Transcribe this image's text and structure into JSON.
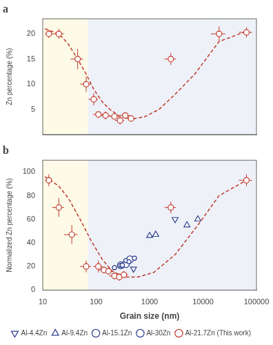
{
  "chart_data": [
    {
      "type": "scatter",
      "title": "a",
      "ylabel": "Zn percentage (%)",
      "log": "x",
      "xlim": [
        10,
        100000
      ],
      "xticks": [
        10,
        100,
        1000,
        10000,
        100000
      ],
      "ylim": [
        0,
        23
      ],
      "yticks": [
        5,
        10,
        15,
        20
      ],
      "tick_labels": "y",
      "grid": false,
      "regions": [
        {
          "from": 10,
          "to": 70,
          "color": "#fdfbe8"
        },
        {
          "from": 70,
          "to": 100000,
          "color": "#eef1f8"
        }
      ],
      "series": [
        {
          "color": "#c0392b",
          "marker": "circle",
          "x": [
            13,
            20,
            45,
            65,
            90,
            110,
            150,
            220,
            280,
            350,
            450,
            2500,
            20000,
            65000
          ],
          "values": [
            20,
            20,
            15,
            10,
            7,
            4,
            3.8,
            3.6,
            2.8,
            3.8,
            3.2,
            15,
            20,
            20.3
          ],
          "xerr_lo": [
            2,
            5,
            12,
            15,
            18,
            22,
            35,
            45,
            55,
            70,
            90,
            600,
            6000,
            18000
          ],
          "xerr_hi": [
            2,
            5,
            12,
            15,
            18,
            22,
            35,
            45,
            55,
            70,
            90,
            600,
            6000,
            18000
          ],
          "yerr_lo": [
            0.8,
            1.0,
            2.0,
            1.5,
            1.2,
            0.6,
            0.8,
            0.6,
            0.8,
            0.6,
            0.5,
            1.2,
            1.5,
            1.0
          ],
          "yerr_hi": [
            0.8,
            1.0,
            2.0,
            1.5,
            1.2,
            0.6,
            0.8,
            0.6,
            0.8,
            0.6,
            0.5,
            1.2,
            1.5,
            1.0
          ]
        },
        {
          "type": "line",
          "line_style": "dashed",
          "color": "#c0392b",
          "x": [
            11,
            15,
            20,
            30,
            45,
            65,
            90,
            130,
            180,
            280,
            450,
            800,
            1500,
            3000,
            7000,
            20000,
            65000
          ],
          "values": [
            21,
            20.5,
            20,
            18,
            15,
            12,
            9,
            6.5,
            5.0,
            3.6,
            3.1,
            3.5,
            5.0,
            8.0,
            12.0,
            18.5,
            20.5
          ]
        }
      ]
    },
    {
      "type": "scatter",
      "title": "b",
      "ylabel": "Normalized Zn percentage (%)",
      "xlabel": "Grain size (nm)",
      "log": "x",
      "xlim": [
        10,
        100000
      ],
      "xticks": [
        10,
        100,
        1000,
        10000,
        100000
      ],
      "ylim": [
        0,
        110
      ],
      "yticks": [
        0,
        20,
        40,
        60,
        80,
        100
      ],
      "grid": false,
      "legend": "bottom",
      "regions": [
        {
          "from": 10,
          "to": 70,
          "color": "#fdfbe8"
        },
        {
          "from": 70,
          "to": 100000,
          "color": "#eef1f8"
        }
      ],
      "series": [
        {
          "name": "Al-4.4Zn",
          "color": "#2c3e8c",
          "marker": "triangle_down",
          "x": [
            500,
            3000
          ],
          "values": [
            18,
            60
          ]
        },
        {
          "name": "Al-9.4Zn",
          "color": "#2c3e8c",
          "marker": "triangle_up",
          "x": [
            1000,
            1300,
            5000,
            8000
          ],
          "values": [
            46,
            47,
            55,
            60
          ]
        },
        {
          "name": "Al-15.1Zn",
          "color": "#2c3e8c",
          "marker": "circle_small",
          "x": [
            220,
            290,
            310,
            360,
            410,
            520
          ],
          "values": [
            19,
            21,
            21,
            25,
            24,
            27
          ]
        },
        {
          "name": "Al-30Zn",
          "color": "#2c3e8c",
          "marker": "circle_large",
          "x": [
            290,
            360,
            430
          ],
          "values": [
            21,
            22,
            26
          ]
        },
        {
          "name": "Al-21.7Zn (This work)",
          "color": "#c0392b",
          "marker": "circle",
          "x": [
            13,
            20,
            35,
            65,
            110,
            140,
            170,
            220,
            270,
            330,
            2500,
            65000
          ],
          "values": [
            93,
            70,
            47,
            20,
            20,
            17,
            16,
            12,
            11,
            13,
            70,
            93
          ],
          "xerr_lo": [
            2,
            5,
            10,
            15,
            22,
            28,
            35,
            45,
            55,
            65,
            600,
            18000
          ],
          "xerr_hi": [
            2,
            5,
            10,
            15,
            22,
            28,
            35,
            45,
            55,
            65,
            600,
            18000
          ],
          "yerr_lo": [
            5,
            8,
            8,
            5,
            5,
            3,
            3,
            3,
            3,
            3,
            5,
            5
          ],
          "yerr_hi": [
            5,
            8,
            8,
            5,
            5,
            3,
            3,
            3,
            3,
            3,
            5,
            5
          ]
        },
        {
          "type": "line",
          "line_style": "dashed",
          "color": "#c0392b",
          "x": [
            11,
            15,
            20,
            30,
            50,
            80,
            130,
            200,
            350,
            600,
            1200,
            3000,
            8000,
            20000,
            65000
          ],
          "values": [
            96,
            92,
            88,
            78,
            60,
            42,
            26,
            16,
            11,
            11,
            15,
            30,
            55,
            80,
            93
          ]
        }
      ]
    }
  ]
}
